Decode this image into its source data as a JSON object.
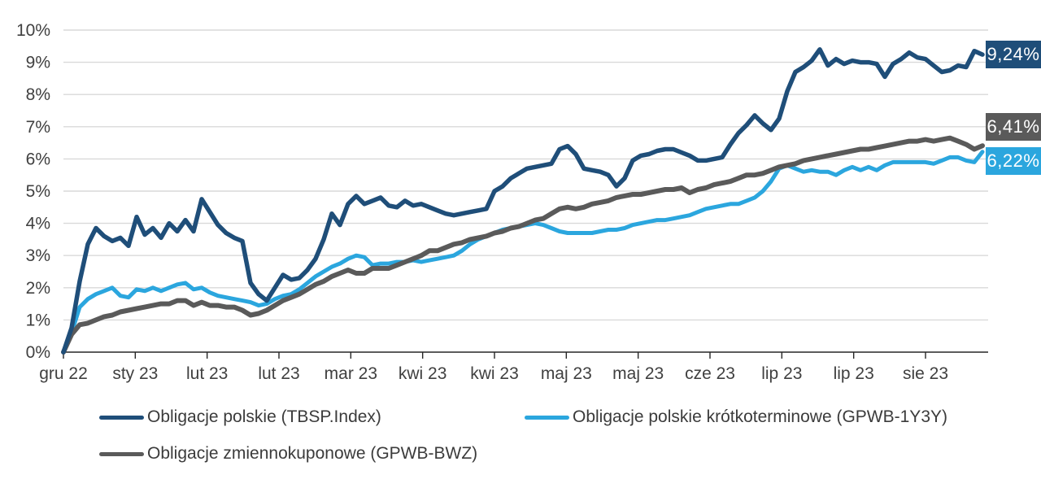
{
  "chart_data": {
    "type": "line",
    "title": "",
    "xlabel": "",
    "ylabel": "",
    "ylim": [
      0,
      10
    ],
    "grid": "horizontal-only",
    "gridline_color": "#d9d9d9",
    "axis_color": "#262626",
    "tick_label_color": "#404040",
    "legend_position": "bottom",
    "y_tick_labels": [
      "0%",
      "1%",
      "2%",
      "3%",
      "4%",
      "5%",
      "6%",
      "7%",
      "8%",
      "9%",
      "10%"
    ],
    "x_tick_labels": [
      "gru 22",
      "sty 23",
      "lut 23",
      "lut 23",
      "mar 23",
      "kwi 23",
      "kwi 23",
      "maj 23",
      "maj 23",
      "cze 23",
      "lip 23",
      "lip 23",
      "sie 23"
    ],
    "series": [
      {
        "name": "Obligacje polskie (TBSP.Index)",
        "color": "#1F4E79",
        "end_label": "9,24%",
        "end_value": 9.24,
        "values": [
          0,
          0.75,
          2.2,
          3.35,
          3.85,
          3.6,
          3.45,
          3.55,
          3.3,
          4.2,
          3.65,
          3.85,
          3.55,
          4.0,
          3.75,
          4.1,
          3.75,
          4.75,
          4.35,
          3.95,
          3.7,
          3.55,
          3.45,
          2.15,
          1.8,
          1.6,
          2.0,
          2.4,
          2.25,
          2.3,
          2.55,
          2.9,
          3.5,
          4.3,
          3.95,
          4.6,
          4.85,
          4.6,
          4.7,
          4.8,
          4.55,
          4.5,
          4.7,
          4.55,
          4.6,
          4.5,
          4.4,
          4.3,
          4.25,
          4.3,
          4.35,
          4.4,
          4.45,
          5.0,
          5.15,
          5.4,
          5.55,
          5.7,
          5.75,
          5.8,
          5.85,
          6.3,
          6.4,
          6.15,
          5.7,
          5.65,
          5.6,
          5.5,
          5.15,
          5.4,
          5.95,
          6.1,
          6.15,
          6.25,
          6.3,
          6.3,
          6.2,
          6.1,
          5.95,
          5.95,
          6.0,
          6.05,
          6.45,
          6.8,
          7.05,
          7.35,
          7.1,
          6.9,
          7.25,
          8.1,
          8.7,
          8.85,
          9.05,
          9.4,
          8.9,
          9.1,
          8.95,
          9.05,
          9.0,
          9.0,
          8.95,
          8.55,
          8.95,
          9.1,
          9.3,
          9.15,
          9.1,
          8.9,
          8.7,
          8.75,
          8.9,
          8.85,
          9.35,
          9.24
        ]
      },
      {
        "name": "Obligacje polskie krótkoterminowe (GPWB-1Y3Y)",
        "color": "#2BA6DE",
        "end_label": "6,22%",
        "end_value": 6.22,
        "values": [
          0,
          0.6,
          1.4,
          1.65,
          1.8,
          1.9,
          2.0,
          1.75,
          1.7,
          1.95,
          1.9,
          2.0,
          1.9,
          2.0,
          2.1,
          2.15,
          1.95,
          2.0,
          1.85,
          1.75,
          1.7,
          1.65,
          1.6,
          1.55,
          1.45,
          1.5,
          1.65,
          1.75,
          1.8,
          1.95,
          2.15,
          2.35,
          2.5,
          2.65,
          2.75,
          2.9,
          3.0,
          2.95,
          2.7,
          2.75,
          2.75,
          2.8,
          2.8,
          2.85,
          2.8,
          2.85,
          2.9,
          2.95,
          3.0,
          3.15,
          3.35,
          3.5,
          3.6,
          3.7,
          3.8,
          3.85,
          3.9,
          3.95,
          4.0,
          3.95,
          3.85,
          3.75,
          3.7,
          3.7,
          3.7,
          3.7,
          3.75,
          3.8,
          3.8,
          3.85,
          3.95,
          4.0,
          4.05,
          4.1,
          4.1,
          4.15,
          4.2,
          4.25,
          4.35,
          4.45,
          4.5,
          4.55,
          4.6,
          4.6,
          4.7,
          4.8,
          5.0,
          5.3,
          5.7,
          5.8,
          5.7,
          5.6,
          5.65,
          5.6,
          5.6,
          5.5,
          5.65,
          5.75,
          5.65,
          5.75,
          5.65,
          5.8,
          5.9,
          5.9,
          5.9,
          5.9,
          5.9,
          5.85,
          5.95,
          6.05,
          6.05,
          5.95,
          5.9,
          6.22
        ]
      },
      {
        "name": "Obligacje zmiennokuponowe (GPWB-BWZ)",
        "color": "#5A5A5A",
        "end_label": "6,41%",
        "end_value": 6.41,
        "values": [
          0,
          0.55,
          0.85,
          0.9,
          1.0,
          1.1,
          1.15,
          1.25,
          1.3,
          1.35,
          1.4,
          1.45,
          1.5,
          1.5,
          1.6,
          1.6,
          1.45,
          1.55,
          1.45,
          1.45,
          1.4,
          1.4,
          1.3,
          1.15,
          1.2,
          1.3,
          1.45,
          1.6,
          1.7,
          1.8,
          1.95,
          2.1,
          2.2,
          2.35,
          2.45,
          2.55,
          2.45,
          2.45,
          2.6,
          2.6,
          2.6,
          2.7,
          2.8,
          2.9,
          3.0,
          3.15,
          3.15,
          3.25,
          3.35,
          3.4,
          3.5,
          3.55,
          3.6,
          3.7,
          3.75,
          3.85,
          3.9,
          4.0,
          4.1,
          4.15,
          4.3,
          4.45,
          4.5,
          4.45,
          4.5,
          4.6,
          4.65,
          4.7,
          4.8,
          4.85,
          4.9,
          4.9,
          4.95,
          5.0,
          5.05,
          5.05,
          5.1,
          4.95,
          5.05,
          5.1,
          5.2,
          5.25,
          5.3,
          5.4,
          5.5,
          5.5,
          5.55,
          5.65,
          5.75,
          5.8,
          5.85,
          5.95,
          6.0,
          6.05,
          6.1,
          6.15,
          6.2,
          6.25,
          6.3,
          6.3,
          6.35,
          6.4,
          6.45,
          6.5,
          6.55,
          6.55,
          6.6,
          6.55,
          6.6,
          6.65,
          6.55,
          6.45,
          6.3,
          6.41
        ]
      }
    ]
  }
}
